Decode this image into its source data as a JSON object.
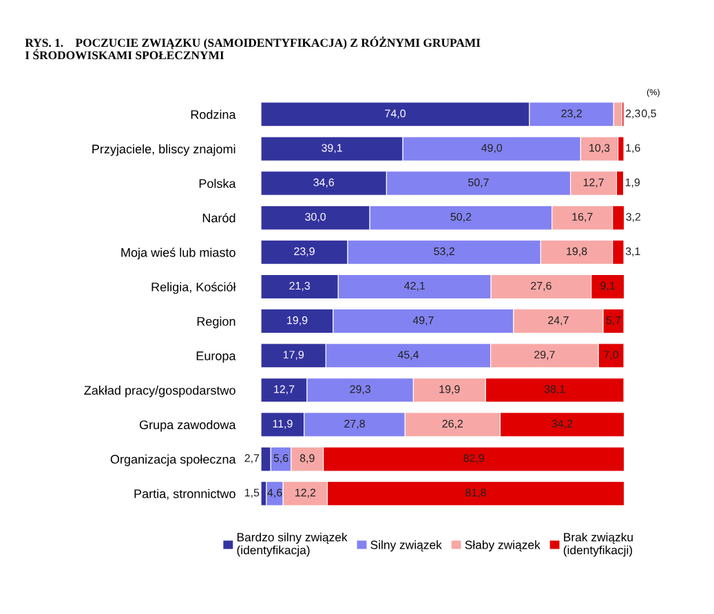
{
  "chart_data": {
    "type": "bar",
    "orientation": "horizontal",
    "stacked": true,
    "title": "RYS. 1.    POCZUCIE ZWIĄZKU (SAMOIDENTYFIKACJA) Z RÓŻNYMI GRUPAMI\nI ŚRODOWISKAMI SPOŁECZNYMI",
    "annotations": [
      "(%)"
    ],
    "categories": [
      "Rodzina",
      "Przyjaciele, bliscy znajomi",
      "Polska",
      "Naród",
      "Moja wieś lub miasto",
      "Religia, Kościół",
      "Region",
      "Europa",
      "Zakład pracy/gospodarstwo",
      "Grupa zawodowa",
      "Organizacja społeczna",
      "Partia, stronnictwo"
    ],
    "series": [
      {
        "name": "Bardzo silny związek\n(identyfikacja)",
        "color": "#33339e",
        "values": [
          74.0,
          39.1,
          34.6,
          30.0,
          23.9,
          21.3,
          19.9,
          17.9,
          12.7,
          11.9,
          2.7,
          1.5
        ],
        "value_labels": [
          "74,0",
          "39,1",
          "34,6",
          "30,0",
          "23,9",
          "21,3",
          "19,9",
          "17,9",
          "12,7",
          "11,9",
          "2,7",
          "1,5"
        ]
      },
      {
        "name": "Silny związek",
        "color": "#8282f2",
        "values": [
          23.2,
          49.0,
          50.7,
          50.2,
          53.2,
          42.1,
          49.7,
          45.4,
          29.3,
          27.8,
          5.6,
          4.6
        ],
        "value_labels": [
          "23,2",
          "49,0",
          "50,7",
          "50,2",
          "53,2",
          "42,1",
          "49,7",
          "45,4",
          "29,3",
          "27,8",
          "5,6",
          "4,6"
        ]
      },
      {
        "name": "Słaby związek",
        "color": "#f7a8a6",
        "values": [
          2.3,
          10.3,
          12.7,
          16.7,
          19.8,
          27.6,
          24.7,
          29.7,
          19.9,
          26.2,
          8.9,
          12.2
        ],
        "value_labels": [
          "2,3",
          "10,3",
          "12,7",
          "16,7",
          "19,8",
          "27,6",
          "24,7",
          "29,7",
          "19,9",
          "26,2",
          "8,9",
          "12,2"
        ]
      },
      {
        "name": "Brak związku\n(identyfikacji)",
        "color": "#e00000",
        "values": [
          0.5,
          1.6,
          1.9,
          3.2,
          3.1,
          9.1,
          5.7,
          7.0,
          38.1,
          34.2,
          82.9,
          81.8
        ],
        "value_labels": [
          "0,5",
          "1,6",
          "1,9",
          "3,2",
          "3,1",
          "9,1",
          "5,7",
          "7,0",
          "38,1",
          "34,2",
          "82,9",
          "81,8"
        ]
      }
    ],
    "legend": "bottom",
    "grid": false
  }
}
